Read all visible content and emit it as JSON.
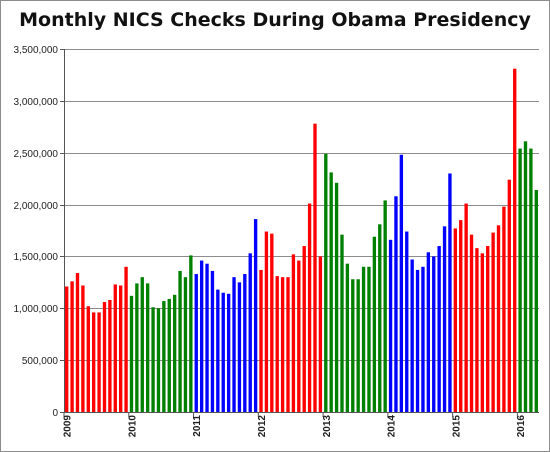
{
  "chart_data": {
    "type": "bar",
    "title": "Monthly NICS Checks During Obama Presidency",
    "xlabel": "",
    "ylabel": "",
    "ylim": [
      0,
      3500000
    ],
    "yticks": [
      0,
      500000,
      1000000,
      1500000,
      2000000,
      2500000,
      3000000,
      3500000
    ],
    "ytick_labels": [
      "0",
      "500,000",
      "1,000,000",
      "1,500,000",
      "2,000,000",
      "2,500,000",
      "3,000,000",
      "3,500,000"
    ],
    "grid": true,
    "legend": "none",
    "colors": [
      "#ff0000",
      "#008000",
      "#0000ff"
    ],
    "year_labels": [
      "2009",
      "2010",
      "2011",
      "2012",
      "2013",
      "2014",
      "2015",
      "2016"
    ],
    "years": [
      {
        "year": "2009",
        "color": "#ff0000",
        "start_index": 0,
        "values": [
          1210000,
          1260000,
          1340000,
          1220000,
          1020000,
          960000,
          960000,
          1060000,
          1080000,
          1230000,
          1220000,
          1400000
        ]
      },
      {
        "year": "2010",
        "color": "#008000",
        "start_index": 12,
        "values": [
          1120000,
          1240000,
          1300000,
          1240000,
          1010000,
          1000000,
          1070000,
          1090000,
          1130000,
          1360000,
          1300000,
          1510000
        ]
      },
      {
        "year": "2011",
        "color": "#0000ff",
        "start_index": 24,
        "values": [
          1330000,
          1460000,
          1430000,
          1360000,
          1180000,
          1150000,
          1140000,
          1300000,
          1250000,
          1330000,
          1530000,
          1860000
        ]
      },
      {
        "year": "2012",
        "color": "#ff0000",
        "start_index": 36,
        "values": [
          1370000,
          1740000,
          1720000,
          1310000,
          1300000,
          1300000,
          1520000,
          1460000,
          1600000,
          2010000,
          2780000,
          1500000
        ]
      },
      {
        "year": "2013",
        "color": "#008000",
        "start_index": 48,
        "values": [
          2490000,
          2310000,
          2210000,
          1710000,
          1430000,
          1280000,
          1280000,
          1400000,
          1400000,
          1690000,
          1810000,
          2040000
        ]
      },
      {
        "year": "2014",
        "color": "#0000ff",
        "start_index": 60,
        "values": [
          1660000,
          2080000,
          2480000,
          1740000,
          1470000,
          1370000,
          1400000,
          1540000,
          1500000,
          1600000,
          1790000,
          2300000
        ]
      },
      {
        "year": "2015",
        "color": "#ff0000",
        "start_index": 72,
        "values": [
          1770000,
          1850000,
          2010000,
          1710000,
          1580000,
          1530000,
          1600000,
          1730000,
          1800000,
          1980000,
          2240000,
          3310000
        ]
      },
      {
        "year": "2016",
        "color": "#008000",
        "start_index": 84,
        "values": [
          2540000,
          2610000,
          2540000,
          2140000
        ]
      }
    ]
  }
}
